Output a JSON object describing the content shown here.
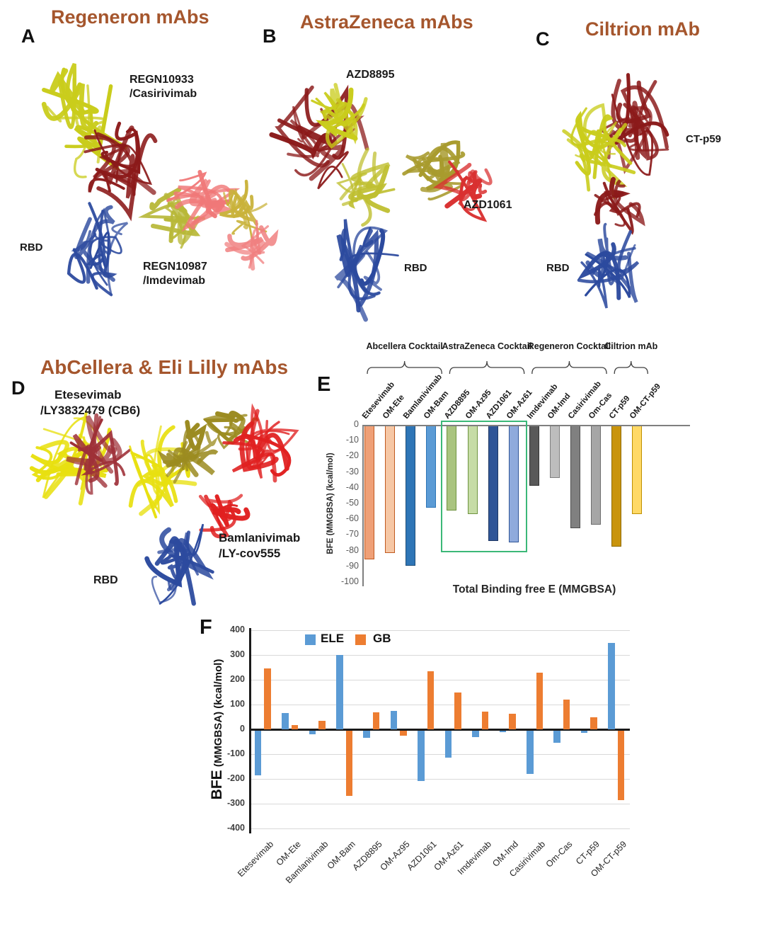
{
  "panelA": {
    "letter": "A",
    "title": "Regeneron mAbs",
    "ab1_line1": "REGN10933",
    "ab1_line2": "/Casirivimab",
    "rbd": "RBD",
    "ab2_line1": "REGN10987",
    "ab2_line2": "/Imdevimab"
  },
  "panelB": {
    "letter": "B",
    "title": "AstraZeneca mAbs",
    "ab1": "AZD8895",
    "ab2": "AZD1061",
    "rbd": "RBD"
  },
  "panelC": {
    "letter": "C",
    "title": "Ciltrion mAb",
    "ab1": "CT-p59",
    "rbd": "RBD"
  },
  "panelD": {
    "letter": "D",
    "title": "AbCellera & Eli Lilly mAbs",
    "ab1_line1": "Etesevimab",
    "ab1_line2": "/LY3832479 (CB6)",
    "ab2_line1": "Bamlanivimab",
    "ab2_line2": "/LY-cov555",
    "rbd": "RBD"
  },
  "panelE": {
    "letter": "E"
  },
  "panelF": {
    "letter": "F"
  },
  "colors": {
    "panel_title_brown": "#A5562D",
    "highlight_green": "#3CB878",
    "ele_blue": "#5B9BD5",
    "gb_orange": "#ED7D31"
  },
  "chart_data": [
    {
      "id": "E",
      "type": "bar",
      "title": "Total Binding free E (MMGBSA)",
      "ylabel": "BFE (MMGBSA) (kcal/mol)",
      "ylim": [
        -100,
        0
      ],
      "yticks": [
        0,
        -10,
        -20,
        -30,
        -40,
        -50,
        -60,
        -70,
        -80,
        -90,
        -100
      ],
      "grid": false,
      "legend_position": "none",
      "categories": [
        "Etesevimab",
        "OM-Ete",
        "Bamlanivimab",
        "OM-Bam",
        "AZD8895",
        "OM-Az95",
        "AZD1061",
        "OM-Az61",
        "Imdevimab",
        "OM-Imd",
        "Casirivimab",
        "Om-Cas",
        "CT-p59",
        "OM-CT-p59"
      ],
      "values": [
        -85,
        -81,
        -89,
        -52,
        -54,
        -56,
        -73,
        -74,
        -38,
        -33,
        -65,
        -63,
        -77,
        -56
      ],
      "bar_colors": [
        "#EFA077",
        "#F6C7A5",
        "#2E75B6",
        "#5B9BD5",
        "#A9C47F",
        "#C6DCA6",
        "#2F5597",
        "#8FAADC",
        "#595959",
        "#BDBDBD",
        "#808080",
        "#A6A6A6",
        "#C9940C",
        "#FFD966"
      ],
      "bar_border_colors": [
        "#C05A20",
        "#C05A20",
        "#1F4E79",
        "#2E75B6",
        "#6F9440",
        "#6F9440",
        "#1F3864",
        "#2F5597",
        "#333333",
        "#7F7F7F",
        "#4D4D4D",
        "#6E6E6E",
        "#8F6A00",
        "#BF8F00"
      ],
      "groups": [
        {
          "label": "Abcellera Cocktail",
          "start": 0,
          "end": 3
        },
        {
          "label": "AstraZeneca Cocktail",
          "start": 4,
          "end": 7
        },
        {
          "label": "Regeneron Cocktail",
          "start": 8,
          "end": 11
        },
        {
          "label": "Ciltrion mAb",
          "start": 12,
          "end": 13
        }
      ],
      "highlight_box": {
        "start": 4,
        "end": 7,
        "color": "#3CB878"
      }
    },
    {
      "id": "F",
      "type": "bar",
      "title": "",
      "ylabel_main": "BFE",
      "ylabel_rest": " (MMGBSA) (kcal/mol)",
      "ylim": [
        -400,
        400
      ],
      "yticks": [
        400,
        300,
        200,
        100,
        0,
        -100,
        -200,
        -300,
        -400
      ],
      "grid": true,
      "legend_position": "top-inside",
      "categories": [
        "Etesevimab",
        "OM-Ete",
        "Bamlanivimab",
        "OM-Bam",
        "AZD8895",
        "OM-Az95",
        "AZD1061",
        "OM-Az61",
        "Imdevimab",
        "OM-Imd",
        "Casirivimab",
        "Om-Cas",
        "CT-p59",
        "OM-CT-p59"
      ],
      "series": [
        {
          "name": "ELE",
          "color": "#5B9BD5",
          "values": [
            -180,
            65,
            -15,
            300,
            -30,
            75,
            -205,
            -110,
            -28,
            -6,
            -175,
            -50,
            -10,
            350
          ]
        },
        {
          "name": "GB",
          "color": "#ED7D31",
          "values": [
            245,
            18,
            33,
            -265,
            70,
            -22,
            235,
            150,
            72,
            63,
            228,
            120,
            48,
            -280
          ]
        }
      ]
    }
  ]
}
